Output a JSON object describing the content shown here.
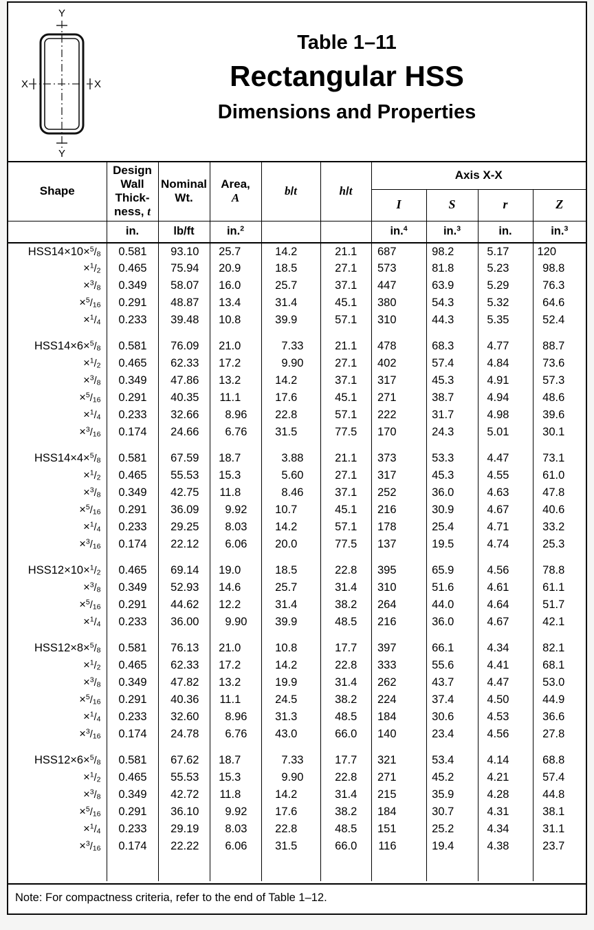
{
  "header": {
    "table_number": "Table 1–11",
    "title": "Rectangular HSS",
    "subtitle": "Dimensions and Properties"
  },
  "diagram": {
    "top": "Y",
    "bottom": "Y",
    "left": "X",
    "right": "X"
  },
  "table": {
    "columns": {
      "shape": "Shape",
      "wall": "Design\nWall\nThick-\nness, _t_",
      "nominal": "Nominal\nWt.",
      "area": "Area,\n_A_",
      "bt": "_b_/_t_",
      "ht": "_h_/_t_",
      "axis_xx": "Axis X-X",
      "I": "_I_",
      "S": "_S_",
      "r": "_r_",
      "Z": "_Z_"
    },
    "units": [
      "",
      "in.",
      "lb/ft",
      "in.^2^",
      "",
      "",
      "in.^4^",
      "in.^3^",
      "in.",
      "in.^3^"
    ],
    "groups": [
      {
        "rows": [
          {
            "shape": "HSS14×10×5/8",
            "values": [
              "0.581",
              "93.10",
              "25.7",
              "14.2",
              "21.1",
              "687",
              "98.2",
              "5.17",
              "120"
            ]
          },
          {
            "shape": "×1/2",
            "values": [
              "0.465",
              "75.94",
              "20.9",
              "18.5",
              "27.1",
              "573",
              "81.8",
              "5.23",
              "98.8"
            ]
          },
          {
            "shape": "×3/8",
            "values": [
              "0.349",
              "58.07",
              "16.0",
              "25.7",
              "37.1",
              "447",
              "63.9",
              "5.29",
              "76.3"
            ]
          },
          {
            "shape": "×5/16",
            "values": [
              "0.291",
              "48.87",
              "13.4",
              "31.4",
              "45.1",
              "380",
              "54.3",
              "5.32",
              "64.6"
            ]
          },
          {
            "shape": "×1/4",
            "values": [
              "0.233",
              "39.48",
              "10.8",
              "39.9",
              "57.1",
              "310",
              "44.3",
              "5.35",
              "52.4"
            ]
          }
        ]
      },
      {
        "rows": [
          {
            "shape": "HSS14×6×5/8",
            "values": [
              "0.581",
              "76.09",
              "21.0",
              "7.33",
              "21.1",
              "478",
              "68.3",
              "4.77",
              "88.7"
            ]
          },
          {
            "shape": "×1/2",
            "values": [
              "0.465",
              "62.33",
              "17.2",
              "9.90",
              "27.1",
              "402",
              "57.4",
              "4.84",
              "73.6"
            ]
          },
          {
            "shape": "×3/8",
            "values": [
              "0.349",
              "47.86",
              "13.2",
              "14.2",
              "37.1",
              "317",
              "45.3",
              "4.91",
              "57.3"
            ]
          },
          {
            "shape": "×5/16",
            "values": [
              "0.291",
              "40.35",
              "11.1",
              "17.6",
              "45.1",
              "271",
              "38.7",
              "4.94",
              "48.6"
            ]
          },
          {
            "shape": "×1/4",
            "values": [
              "0.233",
              "32.66",
              "8.96",
              "22.8",
              "57.1",
              "222",
              "31.7",
              "4.98",
              "39.6"
            ]
          },
          {
            "shape": "×3/16",
            "values": [
              "0.174",
              "24.66",
              "6.76",
              "31.5",
              "77.5",
              "170",
              "24.3",
              "5.01",
              "30.1"
            ]
          }
        ]
      },
      {
        "rows": [
          {
            "shape": "HSS14×4×5/8",
            "values": [
              "0.581",
              "67.59",
              "18.7",
              "3.88",
              "21.1",
              "373",
              "53.3",
              "4.47",
              "73.1"
            ]
          },
          {
            "shape": "×1/2",
            "values": [
              "0.465",
              "55.53",
              "15.3",
              "5.60",
              "27.1",
              "317",
              "45.3",
              "4.55",
              "61.0"
            ]
          },
          {
            "shape": "×3/8",
            "values": [
              "0.349",
              "42.75",
              "11.8",
              "8.46",
              "37.1",
              "252",
              "36.0",
              "4.63",
              "47.8"
            ]
          },
          {
            "shape": "×5/16",
            "values": [
              "0.291",
              "36.09",
              "9.92",
              "10.7",
              "45.1",
              "216",
              "30.9",
              "4.67",
              "40.6"
            ]
          },
          {
            "shape": "×1/4",
            "values": [
              "0.233",
              "29.25",
              "8.03",
              "14.2",
              "57.1",
              "178",
              "25.4",
              "4.71",
              "33.2"
            ]
          },
          {
            "shape": "×3/16",
            "values": [
              "0.174",
              "22.12",
              "6.06",
              "20.0",
              "77.5",
              "137",
              "19.5",
              "4.74",
              "25.3"
            ]
          }
        ]
      },
      {
        "rows": [
          {
            "shape": "HSS12×10×1/2",
            "values": [
              "0.465",
              "69.14",
              "19.0",
              "18.5",
              "22.8",
              "395",
              "65.9",
              "4.56",
              "78.8"
            ]
          },
          {
            "shape": "×3/8",
            "values": [
              "0.349",
              "52.93",
              "14.6",
              "25.7",
              "31.4",
              "310",
              "51.6",
              "4.61",
              "61.1"
            ]
          },
          {
            "shape": "×5/16",
            "values": [
              "0.291",
              "44.62",
              "12.2",
              "31.4",
              "38.2",
              "264",
              "44.0",
              "4.64",
              "51.7"
            ]
          },
          {
            "shape": "×1/4",
            "values": [
              "0.233",
              "36.00",
              "9.90",
              "39.9",
              "48.5",
              "216",
              "36.0",
              "4.67",
              "42.1"
            ]
          }
        ]
      },
      {
        "rows": [
          {
            "shape": "HSS12×8×5/8",
            "values": [
              "0.581",
              "76.13",
              "21.0",
              "10.8",
              "17.7",
              "397",
              "66.1",
              "4.34",
              "82.1"
            ]
          },
          {
            "shape": "×1/2",
            "values": [
              "0.465",
              "62.33",
              "17.2",
              "14.2",
              "22.8",
              "333",
              "55.6",
              "4.41",
              "68.1"
            ]
          },
          {
            "shape": "×3/8",
            "values": [
              "0.349",
              "47.82",
              "13.2",
              "19.9",
              "31.4",
              "262",
              "43.7",
              "4.47",
              "53.0"
            ]
          },
          {
            "shape": "×5/16",
            "values": [
              "0.291",
              "40.36",
              "11.1",
              "24.5",
              "38.2",
              "224",
              "37.4",
              "4.50",
              "44.9"
            ]
          },
          {
            "shape": "×1/4",
            "values": [
              "0.233",
              "32.60",
              "8.96",
              "31.3",
              "48.5",
              "184",
              "30.6",
              "4.53",
              "36.6"
            ]
          },
          {
            "shape": "×3/16",
            "values": [
              "0.174",
              "24.78",
              "6.76",
              "43.0",
              "66.0",
              "140",
              "23.4",
              "4.56",
              "27.8"
            ]
          }
        ]
      },
      {
        "rows": [
          {
            "shape": "HSS12×6×5/8",
            "values": [
              "0.581",
              "67.62",
              "18.7",
              "7.33",
              "17.7",
              "321",
              "53.4",
              "4.14",
              "68.8"
            ]
          },
          {
            "shape": "×1/2",
            "values": [
              "0.465",
              "55.53",
              "15.3",
              "9.90",
              "22.8",
              "271",
              "45.2",
              "4.21",
              "57.4"
            ]
          },
          {
            "shape": "×3/8",
            "values": [
              "0.349",
              "42.72",
              "11.8",
              "14.2",
              "31.4",
              "215",
              "35.9",
              "4.28",
              "44.8"
            ]
          },
          {
            "shape": "×5/16",
            "values": [
              "0.291",
              "36.10",
              "9.92",
              "17.6",
              "38.2",
              "184",
              "30.7",
              "4.31",
              "38.1"
            ]
          },
          {
            "shape": "×1/4",
            "values": [
              "0.233",
              "29.19",
              "8.03",
              "22.8",
              "48.5",
              "151",
              "25.2",
              "4.34",
              "31.1"
            ]
          },
          {
            "shape": "×3/16",
            "values": [
              "0.174",
              "22.22",
              "6.06",
              "31.5",
              "66.0",
              "116",
              "19.4",
              "4.38",
              "23.7"
            ]
          }
        ]
      }
    ]
  },
  "footer": {
    "note": "Note: For compactness criteria, refer to the end of Table 1–12."
  }
}
